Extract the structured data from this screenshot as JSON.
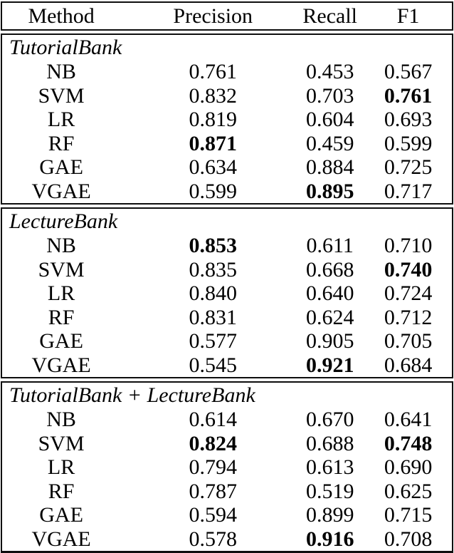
{
  "table": {
    "columns": [
      "Method",
      "Precision",
      "Recall",
      "F1"
    ],
    "sections": [
      {
        "title": "TutorialBank",
        "rows": [
          {
            "method": "NB",
            "precision": "0.761",
            "recall": "0.453",
            "f1": "0.567",
            "bold": []
          },
          {
            "method": "SVM",
            "precision": "0.832",
            "recall": "0.703",
            "f1": "0.761",
            "bold": [
              "f1"
            ]
          },
          {
            "method": "LR",
            "precision": "0.819",
            "recall": "0.604",
            "f1": "0.693",
            "bold": []
          },
          {
            "method": "RF",
            "precision": "0.871",
            "recall": "0.459",
            "f1": "0.599",
            "bold": [
              "precision"
            ]
          },
          {
            "method": "GAE",
            "precision": "0.634",
            "recall": "0.884",
            "f1": "0.725",
            "bold": []
          },
          {
            "method": "VGAE",
            "precision": "0.599",
            "recall": "0.895",
            "f1": "0.717",
            "bold": [
              "recall"
            ]
          }
        ]
      },
      {
        "title": "LectureBank",
        "rows": [
          {
            "method": "NB",
            "precision": "0.853",
            "recall": "0.611",
            "f1": "0.710",
            "bold": [
              "precision"
            ]
          },
          {
            "method": "SVM",
            "precision": "0.835",
            "recall": "0.668",
            "f1": "0.740",
            "bold": [
              "f1"
            ]
          },
          {
            "method": "LR",
            "precision": "0.840",
            "recall": "0.640",
            "f1": "0.724",
            "bold": []
          },
          {
            "method": "RF",
            "precision": "0.831",
            "recall": "0.624",
            "f1": "0.712",
            "bold": []
          },
          {
            "method": "GAE",
            "precision": "0.577",
            "recall": "0.905",
            "f1": "0.705",
            "bold": []
          },
          {
            "method": "VGAE",
            "precision": "0.545",
            "recall": "0.921",
            "f1": "0.684",
            "bold": [
              "recall"
            ]
          }
        ]
      },
      {
        "title": "TutorialBank + LectureBank",
        "rows": [
          {
            "method": "NB",
            "precision": "0.614",
            "recall": "0.670",
            "f1": "0.641",
            "bold": []
          },
          {
            "method": "SVM",
            "precision": "0.824",
            "recall": "0.688",
            "f1": "0.748",
            "bold": [
              "precision",
              "f1"
            ]
          },
          {
            "method": "LR",
            "precision": "0.794",
            "recall": "0.613",
            "f1": "0.690",
            "bold": []
          },
          {
            "method": "RF",
            "precision": "0.787",
            "recall": "0.519",
            "f1": "0.625",
            "bold": []
          },
          {
            "method": "GAE",
            "precision": "0.594",
            "recall": "0.899",
            "f1": "0.715",
            "bold": []
          },
          {
            "method": "VGAE",
            "precision": "0.578",
            "recall": "0.916",
            "f1": "0.708",
            "bold": [
              "recall"
            ]
          }
        ]
      }
    ]
  }
}
